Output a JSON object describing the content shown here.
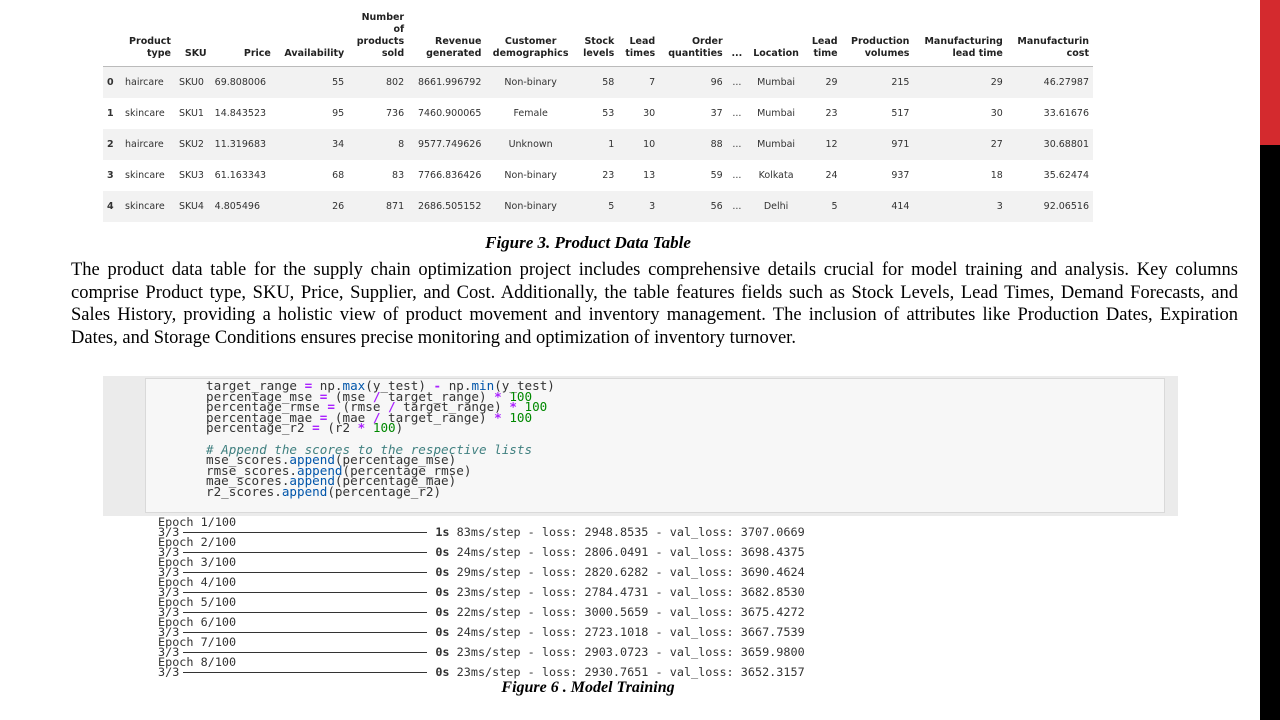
{
  "table": {
    "headers": [
      "",
      "Product\ntype",
      "SKU",
      "Price",
      "Availability",
      "Number\nof\nproducts\nsold",
      "Revenue\ngenerated",
      "Customer\ndemographics",
      "Stock\nlevels",
      "Lead\ntimes",
      "Order\nquantities",
      "...",
      "Location",
      "Lead\ntime",
      "Production\nvolumes",
      "Manufacturing\nlead time",
      "Manufacturin\ncost"
    ],
    "rows": [
      [
        "0",
        "haircare",
        "SKU0",
        "69.808006",
        "55",
        "802",
        "8661.996792",
        "Non-binary",
        "58",
        "7",
        "96",
        "...",
        "Mumbai",
        "29",
        "215",
        "29",
        "46.27987"
      ],
      [
        "1",
        "skincare",
        "SKU1",
        "14.843523",
        "95",
        "736",
        "7460.900065",
        "Female",
        "53",
        "30",
        "37",
        "...",
        "Mumbai",
        "23",
        "517",
        "30",
        "33.61676"
      ],
      [
        "2",
        "haircare",
        "SKU2",
        "11.319683",
        "34",
        "8",
        "9577.749626",
        "Unknown",
        "1",
        "10",
        "88",
        "...",
        "Mumbai",
        "12",
        "971",
        "27",
        "30.68801"
      ],
      [
        "3",
        "skincare",
        "SKU3",
        "61.163343",
        "68",
        "83",
        "7766.836426",
        "Non-binary",
        "23",
        "13",
        "59",
        "...",
        "Kolkata",
        "24",
        "937",
        "18",
        "35.62474"
      ],
      [
        "4",
        "skincare",
        "SKU4",
        "4.805496",
        "26",
        "871",
        "2686.505152",
        "Non-binary",
        "5",
        "3",
        "56",
        "...",
        "Delhi",
        "5",
        "414",
        "3",
        "92.06516"
      ]
    ]
  },
  "caption_fig3": "Figure 3. Product Data Table",
  "paragraph": "The product data table for the supply chain optimization project includes comprehensive details crucial for model training and analysis. Key columns comprise Product type, SKU, Price, Supplier, and Cost. Additionally, the table features fields such as Stock Levels, Lead Times, Demand Forecasts, and Sales History, providing a holistic view of product movement and inventory management. The inclusion of attributes like Production Dates, Expiration Dates, and Storage Conditions ensures precise monitoring and optimization of inventory turnover.",
  "code": {
    "lines": [
      "target_range = np.max(y_test) - np.min(y_test)",
      "percentage_mse = (mse / target_range) * 100",
      "percentage_rmse = (rmse / target_range) * 100",
      "percentage_mae = (mae / target_range) * 100",
      "percentage_r2 = (r2 * 100)",
      "",
      "# Append the scores to the respective lists",
      "mse_scores.append(percentage_mse)",
      "rmse_scores.append(percentage_rmse)",
      "mae_scores.append(percentage_mae)",
      "r2_scores.append(percentage_r2)"
    ]
  },
  "training_log": [
    {
      "epoch": "Epoch 1/100",
      "steps": "3/3",
      "time": "1s",
      "per_step": "83ms/step",
      "loss": "loss: 2948.8535",
      "val_loss": "val_loss: 3707.0669"
    },
    {
      "epoch": "Epoch 2/100",
      "steps": "3/3",
      "time": "0s",
      "per_step": "24ms/step",
      "loss": "loss: 2806.0491",
      "val_loss": "val_loss: 3698.4375"
    },
    {
      "epoch": "Epoch 3/100",
      "steps": "3/3",
      "time": "0s",
      "per_step": "29ms/step",
      "loss": "loss: 2820.6282",
      "val_loss": "val_loss: 3690.4624"
    },
    {
      "epoch": "Epoch 4/100",
      "steps": "3/3",
      "time": "0s",
      "per_step": "23ms/step",
      "loss": "loss: 2784.4731",
      "val_loss": "val_loss: 3682.8530"
    },
    {
      "epoch": "Epoch 5/100",
      "steps": "3/3",
      "time": "0s",
      "per_step": "22ms/step",
      "loss": "loss: 3000.5659",
      "val_loss": "val_loss: 3675.4272"
    },
    {
      "epoch": "Epoch 6/100",
      "steps": "3/3",
      "time": "0s",
      "per_step": "24ms/step",
      "loss": "loss: 2723.1018",
      "val_loss": "val_loss: 3667.7539"
    },
    {
      "epoch": "Epoch 7/100",
      "steps": "3/3",
      "time": "0s",
      "per_step": "23ms/step",
      "loss": "loss: 2903.0723",
      "val_loss": "val_loss: 3659.9800"
    },
    {
      "epoch": "Epoch 8/100",
      "steps": "3/3",
      "time": "0s",
      "per_step": "23ms/step",
      "loss": "loss: 2930.7651",
      "val_loss": "val_loss: 3652.3157"
    }
  ],
  "caption_fig6": "Figure 6 . Model Training",
  "colors": {
    "accent_red": "#d42a2e",
    "edge_black": "#000000"
  }
}
